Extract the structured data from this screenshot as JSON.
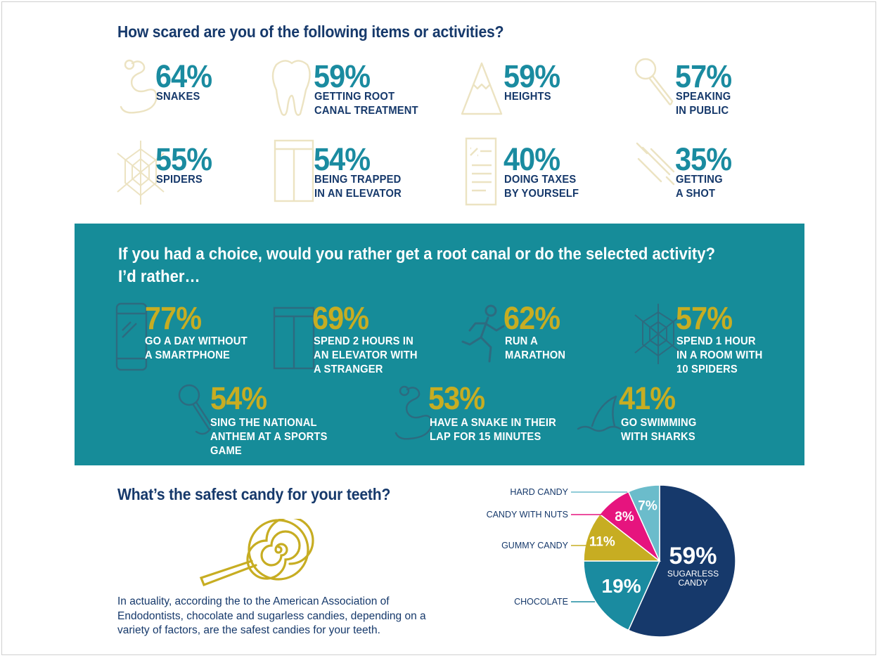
{
  "section1": {
    "title": "How scared are you of the following items or activities?",
    "items": [
      {
        "percent": "64%",
        "label": "SNAKES",
        "icon": "snake-icon"
      },
      {
        "percent": "59%",
        "label": "GETTING ROOT\nCANAL TREATMENT",
        "icon": "tooth-icon"
      },
      {
        "percent": "59%",
        "label": "HEIGHTS",
        "icon": "mountain-icon"
      },
      {
        "percent": "57%",
        "label": "SPEAKING\nIN PUBLIC",
        "icon": "microphone-icon"
      },
      {
        "percent": "55%",
        "label": "SPIDERS",
        "icon": "spiderweb-icon"
      },
      {
        "percent": "54%",
        "label": "BEING TRAPPED\nIN AN ELEVATOR",
        "icon": "elevator-icon"
      },
      {
        "percent": "40%",
        "label": "DOING TAXES\nBY YOURSELF",
        "icon": "tax-document-icon"
      },
      {
        "percent": "35%",
        "label": "GETTING\nA SHOT",
        "icon": "syringe-icon"
      }
    ]
  },
  "section2": {
    "title": "If you had a choice, would you rather get a root canal or do the selected activity?\nI’d rather…",
    "items": [
      {
        "percent": "77%",
        "label": "GO A DAY WITHOUT\nA SMARTPHONE",
        "icon": "smartphone-icon"
      },
      {
        "percent": "69%",
        "label": "SPEND 2 HOURS IN\nAN ELEVATOR WITH\nA STRANGER",
        "icon": "elevator-icon"
      },
      {
        "percent": "62%",
        "label": "RUN A\nMARATHON",
        "icon": "runner-icon"
      },
      {
        "percent": "57%",
        "label": "SPEND 1 HOUR\nIN A ROOM WITH\n10 SPIDERS",
        "icon": "spiderweb-icon"
      },
      {
        "percent": "54%",
        "label": "SING THE NATIONAL\nANTHEM AT A SPORTS GAME",
        "icon": "microphone-icon"
      },
      {
        "percent": "53%",
        "label": "HAVE A SNAKE IN THEIR\nLAP FOR 15 MINUTES",
        "icon": "snake-icon"
      },
      {
        "percent": "41%",
        "label": "GO SWIMMING\nWITH SHARKS",
        "icon": "shark-fin-icon"
      }
    ]
  },
  "section3": {
    "title": "What’s the safest candy for your teeth?",
    "paragraph": "In actuality, according the to the American Association of Endodontists, chocolate and sugarless candies, depending on a variety of factors, are the safest candies for your teeth.",
    "icon": "lollipop-icon"
  },
  "colors": {
    "navy": "#16396b",
    "teal": "#1a8ba0",
    "band": "#168c99",
    "gold": "#c7ad22",
    "icon_cream": "#ece3c2",
    "pink": "#e6147e",
    "light_blue": "#6bbccb"
  },
  "chart_data": {
    "type": "pie",
    "title": "What’s the safest candy for your teeth?",
    "slices": [
      {
        "name": "SUGARLESS CANDY",
        "value": 59,
        "label": "59%",
        "color": "#16396b"
      },
      {
        "name": "CHOCOLATE",
        "value": 19,
        "label": "19%",
        "color": "#1a8ba0"
      },
      {
        "name": "GUMMY CANDY",
        "value": 11,
        "label": "11%",
        "color": "#c7ad22"
      },
      {
        "name": "CANDY WITH NUTS",
        "value": 8,
        "label": "8%",
        "color": "#e6147e"
      },
      {
        "name": "HARD CANDY",
        "value": 7,
        "label": "7%",
        "color": "#6bbccb"
      }
    ]
  }
}
